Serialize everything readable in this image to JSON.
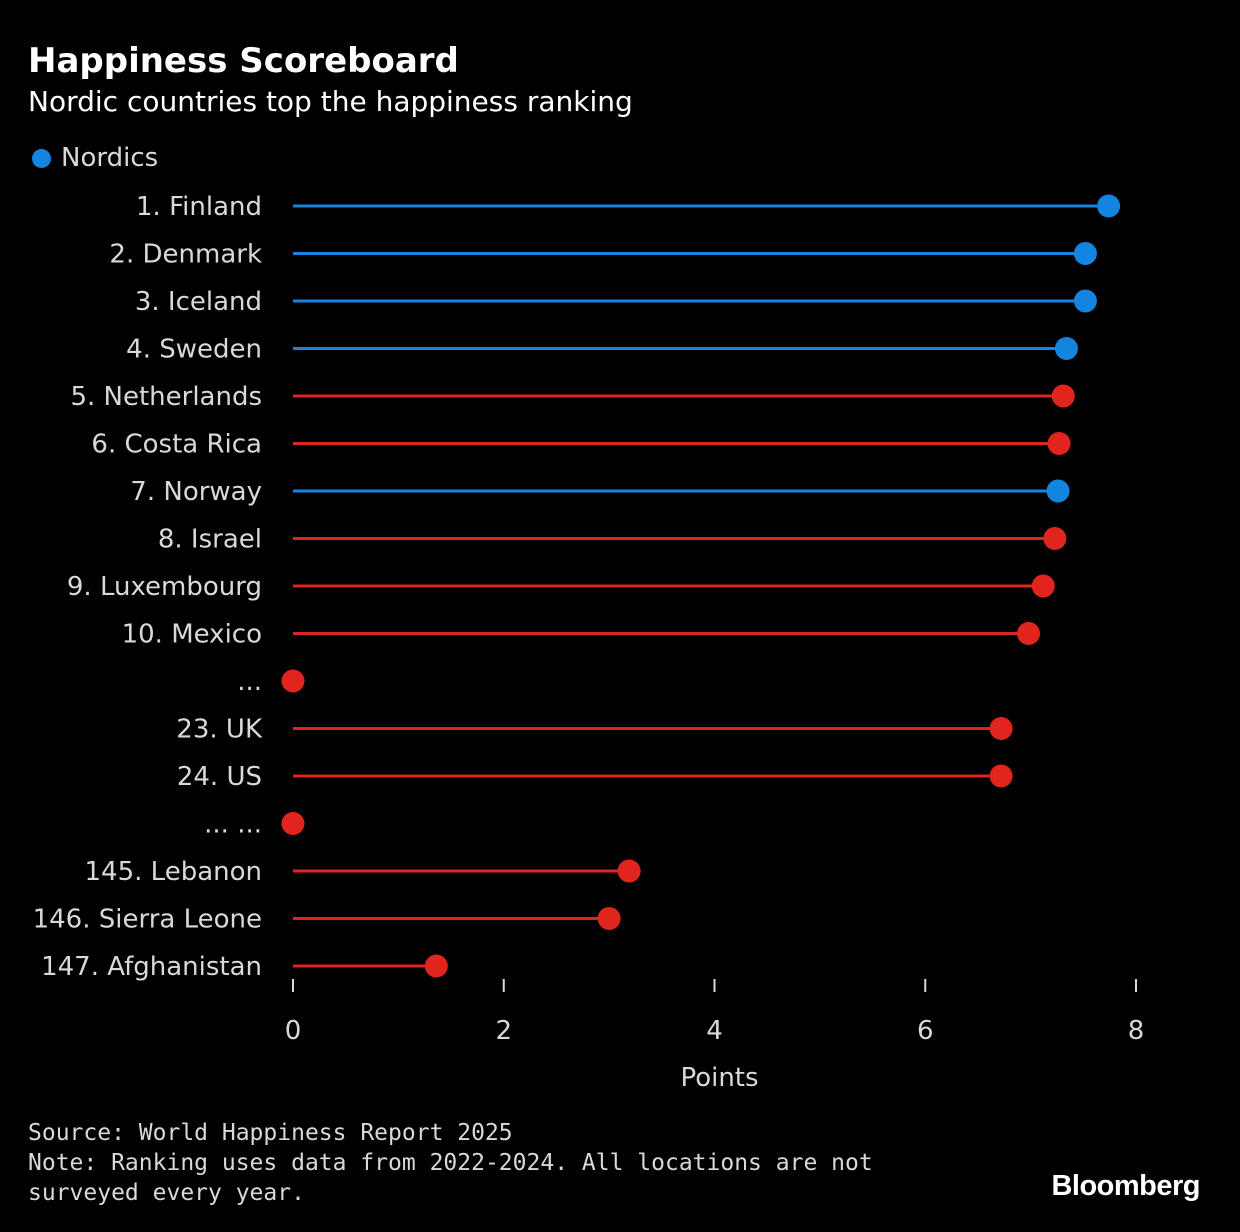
{
  "header": {
    "title": "Happiness Scoreboard",
    "subtitle": "Nordic countries top the happiness ranking"
  },
  "legend": {
    "label": "Nordics",
    "color": "#1385e0"
  },
  "colors": {
    "nordic": "#1385e0",
    "other": "#e0251f",
    "axis": "#d9d9d9",
    "label": "#d9d9d9"
  },
  "chart_data": {
    "type": "lollipop",
    "orientation": "horizontal",
    "xlabel": "Points",
    "xlim": [
      0,
      8
    ],
    "xticks": [
      0,
      2,
      4,
      6,
      8
    ],
    "grid": false,
    "legend_position": "top-left",
    "rows": [
      {
        "label": "1. Finland",
        "value": 7.74,
        "nordic": true
      },
      {
        "label": "2. Denmark",
        "value": 7.52,
        "nordic": true
      },
      {
        "label": "3. Iceland",
        "value": 7.52,
        "nordic": true
      },
      {
        "label": "4. Sweden",
        "value": 7.34,
        "nordic": true
      },
      {
        "label": "5. Netherlands",
        "value": 7.31,
        "nordic": false
      },
      {
        "label": "6. Costa Rica",
        "value": 7.27,
        "nordic": false
      },
      {
        "label": "7. Norway",
        "value": 7.26,
        "nordic": true
      },
      {
        "label": "8. Israel",
        "value": 7.23,
        "nordic": false
      },
      {
        "label": "9. Luxembourg",
        "value": 7.12,
        "nordic": false
      },
      {
        "label": "10. Mexico",
        "value": 6.98,
        "nordic": false
      },
      {
        "label": "...",
        "value": 0,
        "nordic": false
      },
      {
        "label": "23. UK",
        "value": 6.72,
        "nordic": false
      },
      {
        "label": "24. US",
        "value": 6.72,
        "nordic": false
      },
      {
        "label": "... ...",
        "value": 0,
        "nordic": false
      },
      {
        "label": "145. Lebanon",
        "value": 3.19,
        "nordic": false
      },
      {
        "label": "146. Sierra Leone",
        "value": 3.0,
        "nordic": false
      },
      {
        "label": "147. Afghanistan",
        "value": 1.36,
        "nordic": false
      }
    ]
  },
  "footer": {
    "source": "Source: World Happiness Report 2025",
    "note": "Note: Ranking uses data from 2022-2024. All locations are not surveyed every year."
  },
  "brand": "Bloomberg"
}
